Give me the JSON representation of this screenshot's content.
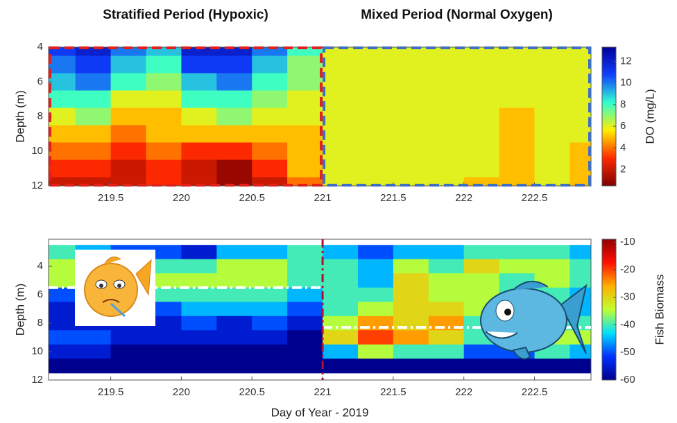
{
  "chart_data": [
    {
      "type": "heatmap",
      "periods": [
        {
          "label": "Stratified Period (Hypoxic)",
          "xlim": [
            219.06,
            221
          ],
          "color": "#e0201c"
        },
        {
          "label": "Mixed Period (Normal Oxygen)",
          "xlim": [
            221,
            222.9
          ],
          "color": "#3f6fc0"
        }
      ],
      "ylabel": "Depth (m)",
      "colorbar_label": "DO (mg/L)",
      "x": [
        219.125,
        219.375,
        219.625,
        219.875,
        220.125,
        220.375,
        220.625,
        220.875,
        221.125,
        221.375,
        221.625,
        221.875,
        222.125,
        222.375,
        222.625,
        222.875
      ],
      "y": [
        4,
        5,
        6,
        7,
        8,
        9,
        10,
        11,
        12
      ],
      "z": [
        [
          11,
          12,
          10,
          9,
          12,
          12,
          10,
          8,
          6,
          6,
          6,
          6,
          6,
          6,
          6,
          6
        ],
        [
          10,
          11,
          9,
          8,
          11,
          11,
          9,
          7,
          6,
          6,
          6,
          6,
          6,
          6,
          6,
          6
        ],
        [
          9,
          10,
          8,
          7,
          9,
          10,
          8,
          7,
          6,
          6,
          6,
          6,
          6,
          6,
          6,
          6
        ],
        [
          8,
          8,
          6,
          6,
          8,
          8,
          7,
          6,
          6,
          6,
          6,
          6,
          6,
          6,
          6,
          6
        ],
        [
          6,
          7,
          5,
          5,
          6,
          7,
          6,
          6,
          6,
          6,
          6,
          6,
          6,
          5,
          6,
          6
        ],
        [
          5,
          5,
          4,
          5,
          5,
          5,
          5,
          5,
          6,
          6,
          6,
          6,
          6,
          5,
          6,
          6
        ],
        [
          4,
          4,
          3,
          4,
          3,
          3,
          4,
          5,
          6,
          6,
          6,
          6,
          6,
          5,
          6,
          5
        ],
        [
          3,
          3,
          2,
          3,
          2,
          1,
          3,
          5,
          6,
          6,
          6,
          6,
          6,
          5,
          6,
          5
        ],
        [
          2,
          2,
          2,
          3,
          2,
          1,
          2,
          4,
          6,
          6,
          6,
          6,
          5,
          5,
          6,
          5
        ]
      ],
      "xlim": [
        219.06,
        222.9
      ],
      "ylim": [
        4,
        12
      ],
      "xticks": [
        219.5,
        220,
        220.5,
        221,
        221.5,
        222,
        222.5
      ],
      "yticks": [
        4,
        6,
        8,
        10,
        12
      ],
      "clim": [
        0.5,
        13.3
      ],
      "cticks": [
        2,
        4,
        6,
        8,
        10,
        12
      ],
      "colormap": [
        "#800000",
        "#ff2a00",
        "#ffee00",
        "#30ffd0",
        "#1040ff",
        "#00009a"
      ]
    },
    {
      "type": "heatmap",
      "xlabel": "Day of Year - 2019",
      "ylabel": "Depth (m)",
      "colorbar_label": "Fish Biomass",
      "x": [
        219.125,
        219.375,
        219.625,
        219.875,
        220.125,
        220.375,
        220.625,
        220.875,
        221.125,
        221.375,
        221.625,
        221.875,
        222.125,
        222.375,
        222.625,
        222.875
      ],
      "y": [
        3,
        4,
        5,
        6,
        7,
        8,
        9,
        10,
        11
      ],
      "z": [
        [
          -40,
          -45,
          -50,
          -50,
          -55,
          -45,
          -45,
          -40,
          -45,
          -50,
          -45,
          -45,
          -40,
          -40,
          -40,
          -45
        ],
        [
          -35,
          -40,
          -45,
          -40,
          -40,
          -35,
          -35,
          -40,
          -40,
          -45,
          -35,
          -40,
          -30,
          -35,
          -35,
          -40
        ],
        [
          -35,
          -40,
          -40,
          -35,
          -35,
          -35,
          -35,
          -40,
          -40,
          -45,
          -30,
          -35,
          -35,
          -40,
          -35,
          -40
        ],
        [
          -50,
          -50,
          -45,
          -40,
          -40,
          -40,
          -40,
          -45,
          -40,
          -40,
          -30,
          -35,
          -35,
          -40,
          -40,
          -45
        ],
        [
          -55,
          -55,
          -50,
          -50,
          -45,
          -45,
          -45,
          -50,
          -40,
          -35,
          -30,
          -30,
          -35,
          -40,
          -40,
          -45
        ],
        [
          -55,
          -55,
          -55,
          -55,
          -50,
          -55,
          -50,
          -55,
          -35,
          -25,
          -30,
          -25,
          -40,
          -40,
          -40,
          -40
        ],
        [
          -50,
          -50,
          -55,
          -55,
          -55,
          -55,
          -55,
          -60,
          -30,
          -20,
          -25,
          -30,
          -40,
          -40,
          -35,
          -35
        ],
        [
          -55,
          -55,
          -60,
          -60,
          -60,
          -60,
          -60,
          -60,
          -45,
          -35,
          -40,
          -40,
          -50,
          -50,
          -40,
          -45
        ],
        [
          -60,
          -60,
          -60,
          -60,
          -60,
          -60,
          -60,
          -60,
          -60,
          -60,
          -60,
          -60,
          -60,
          -60,
          -60,
          -60
        ]
      ],
      "xlim": [
        219.06,
        222.9
      ],
      "ylim": [
        2.1,
        12
      ],
      "xticks": [
        219.5,
        220,
        220.5,
        221,
        221.5,
        222,
        222.5
      ],
      "yticks": [
        4,
        6,
        8,
        10,
        12
      ],
      "clim": [
        -60,
        -9
      ],
      "cticks": [
        -10,
        -20,
        -30,
        -40,
        -50,
        -60
      ],
      "colormap": [
        "#00008f",
        "#0030ff",
        "#00e0ff",
        "#c0ff30",
        "#ffb000",
        "#ff1000",
        "#900000"
      ],
      "mean_depth_lines": [
        {
          "xlim": [
            219.06,
            221
          ],
          "depth": 5.5
        },
        {
          "xlim": [
            221,
            222.9
          ],
          "depth": 8.3
        }
      ],
      "divider": {
        "x": 221,
        "color": "#b01030"
      }
    }
  ]
}
